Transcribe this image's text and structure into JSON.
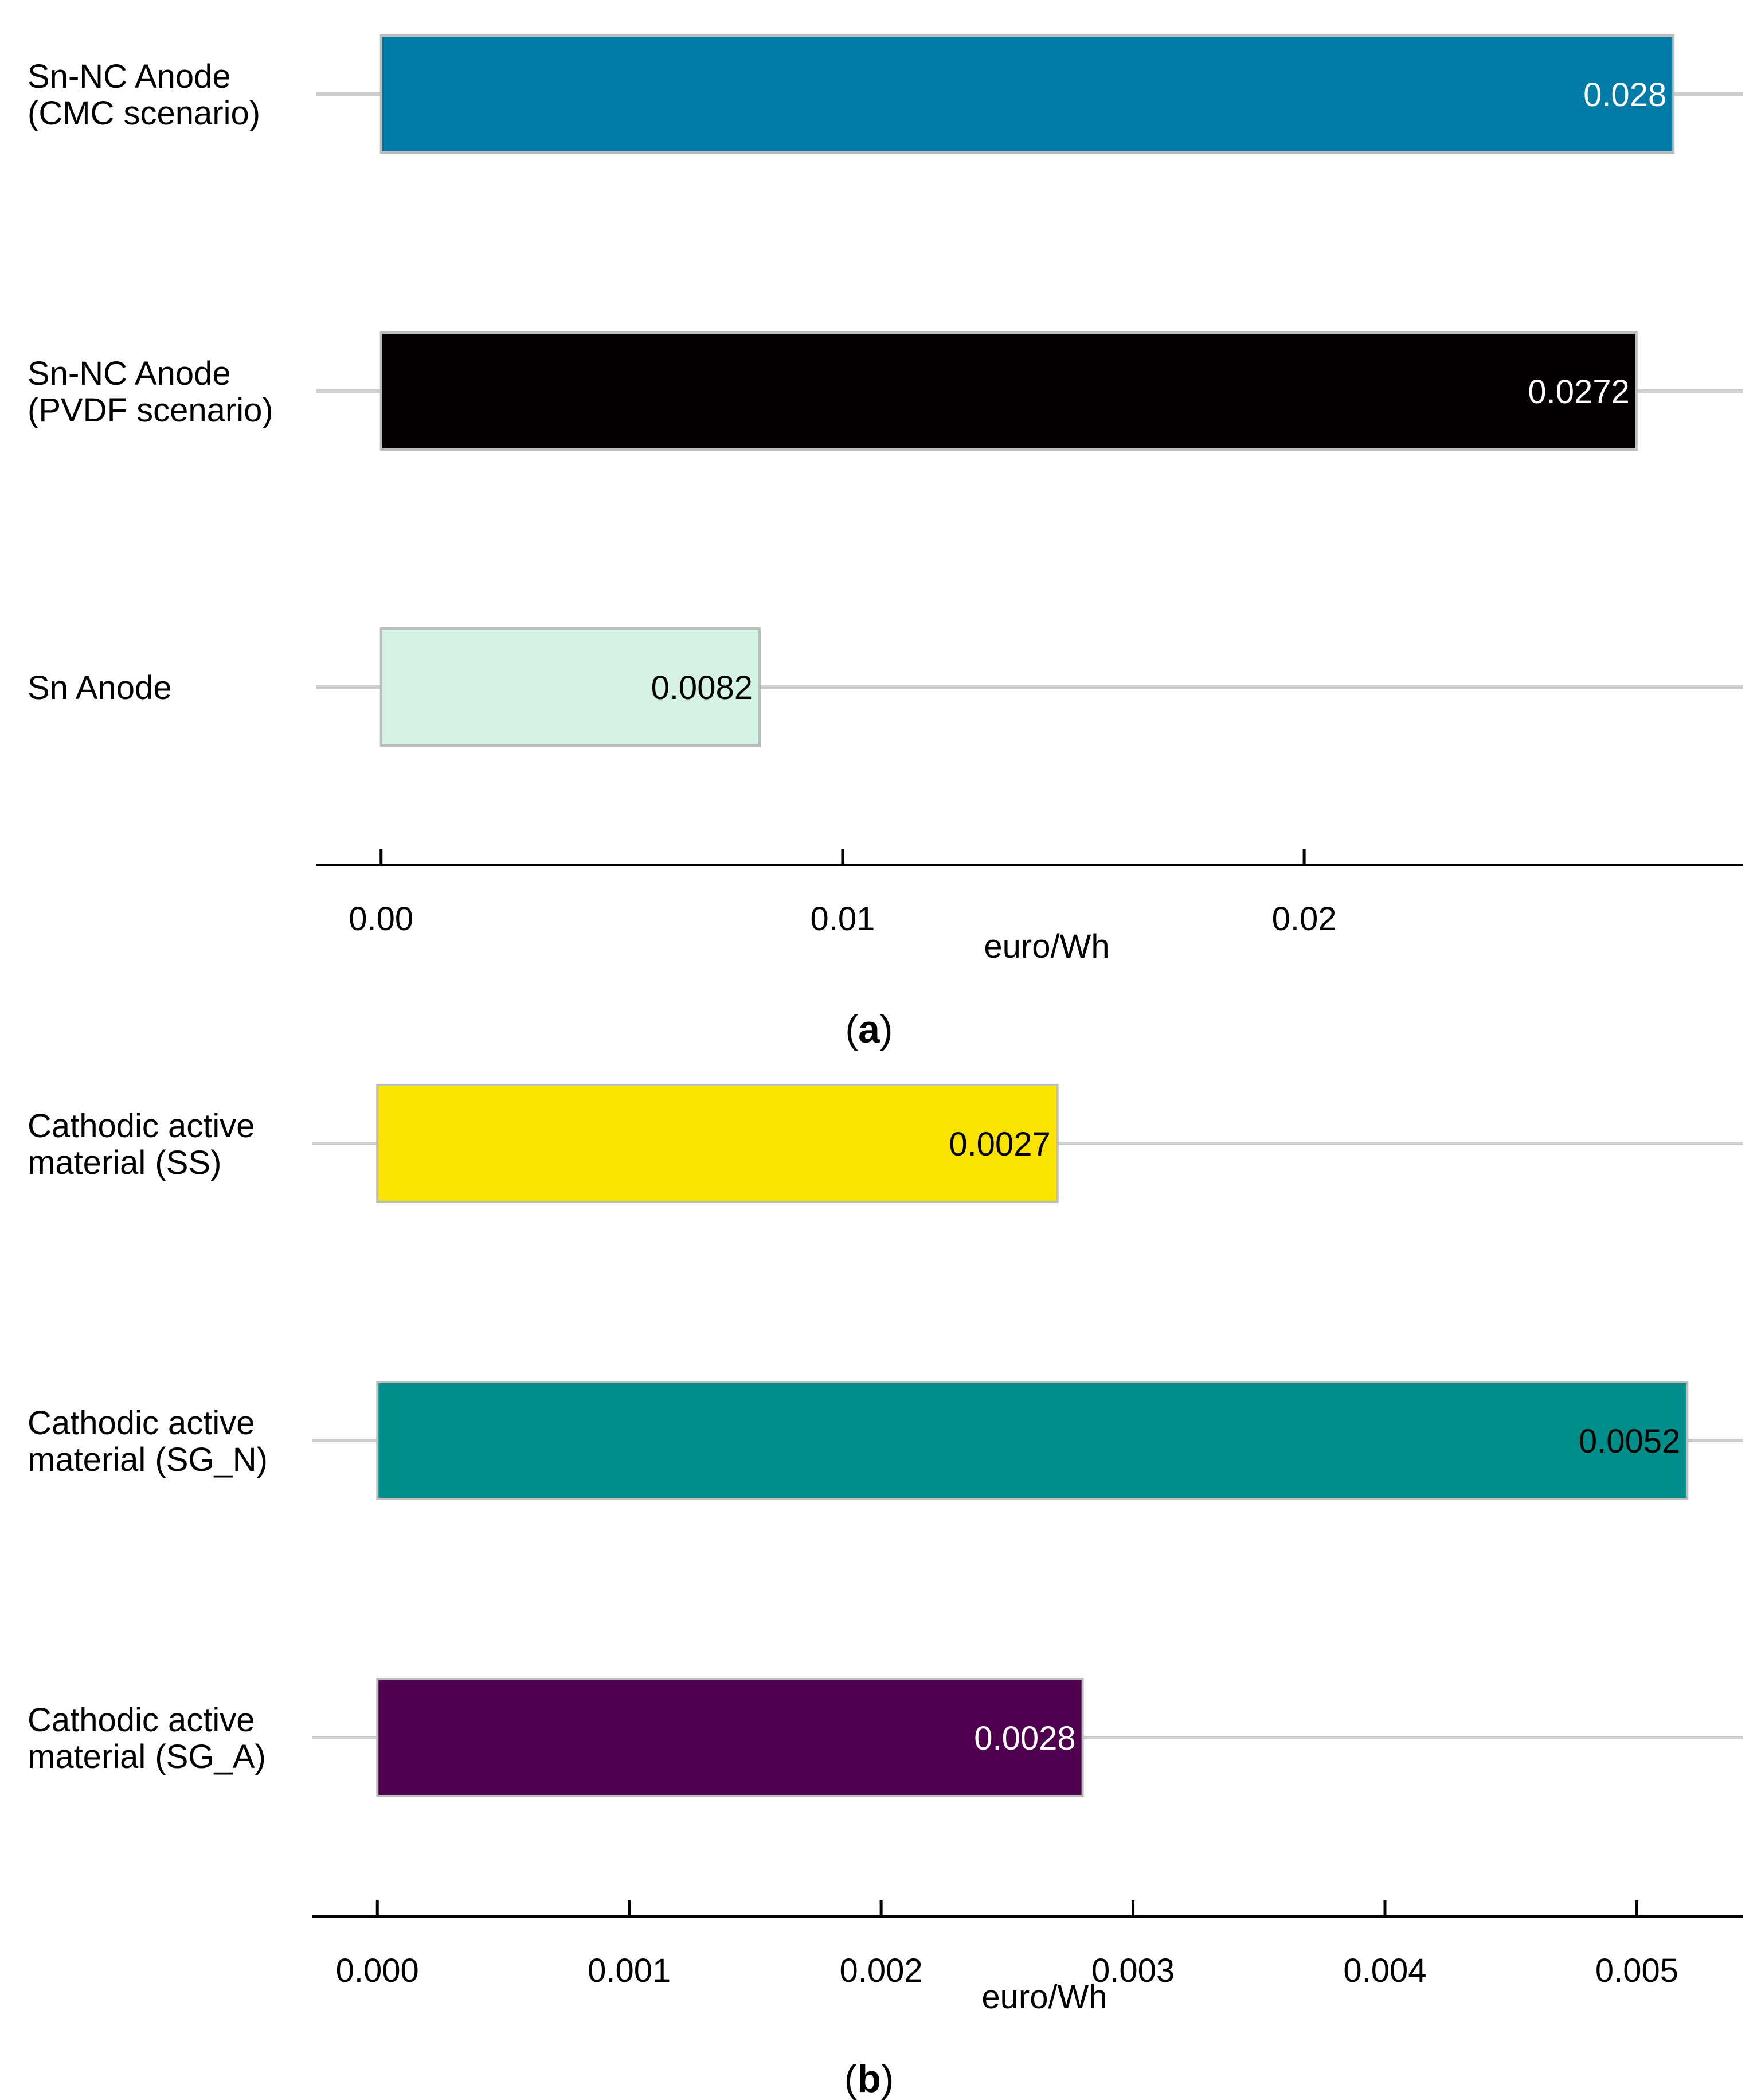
{
  "chart_data": [
    {
      "type": "bar",
      "orientation": "horizontal",
      "panel_label": "(a)",
      "categories": [
        "Sn-NC Anode\n(CMC scenario)",
        "Sn-NC Anode\n(PVDF scenario)",
        "Sn Anode"
      ],
      "values": [
        0.028,
        0.0272,
        0.0082
      ],
      "value_labels": [
        "0.028",
        "0.0272",
        "0.0082"
      ],
      "colors": [
        "#007BA7",
        "#050000",
        "#D4F3E4"
      ],
      "label_colors": [
        "#ffffff",
        "#ffffff",
        "#000000"
      ],
      "xlabel": "euro/Wh",
      "xticks": [
        0.0,
        0.01,
        0.02
      ],
      "xtick_labels": [
        "0.00",
        "0.01",
        "0.02"
      ],
      "xlim": [
        -0.0014,
        0.0295
      ],
      "grid": "horizontal guide line per category",
      "legend": "none"
    },
    {
      "type": "bar",
      "orientation": "horizontal",
      "panel_label": "(b)",
      "categories": [
        "Cathodic active\nmaterial (SS)",
        "Cathodic active\nmaterial (SG_N)",
        "Cathodic active\nmaterial (SG_A)"
      ],
      "values": [
        0.0027,
        0.0052,
        0.0028
      ],
      "value_labels": [
        "0.0027",
        "0.0052",
        "0.0028"
      ],
      "colors": [
        "#FBE300",
        "#008E8A",
        "#4E004E"
      ],
      "label_colors": [
        "#000000",
        "#000000",
        "#ffffff"
      ],
      "xlabel": "euro/Wh",
      "xticks": [
        0.0,
        0.001,
        0.002,
        0.003,
        0.004,
        0.005
      ],
      "xtick_labels": [
        "0.000",
        "0.001",
        "0.002",
        "0.003",
        "0.004",
        "0.005"
      ],
      "xlim": [
        -0.00026,
        0.00542
      ],
      "grid": "horizontal guide line per category",
      "legend": "none"
    }
  ]
}
